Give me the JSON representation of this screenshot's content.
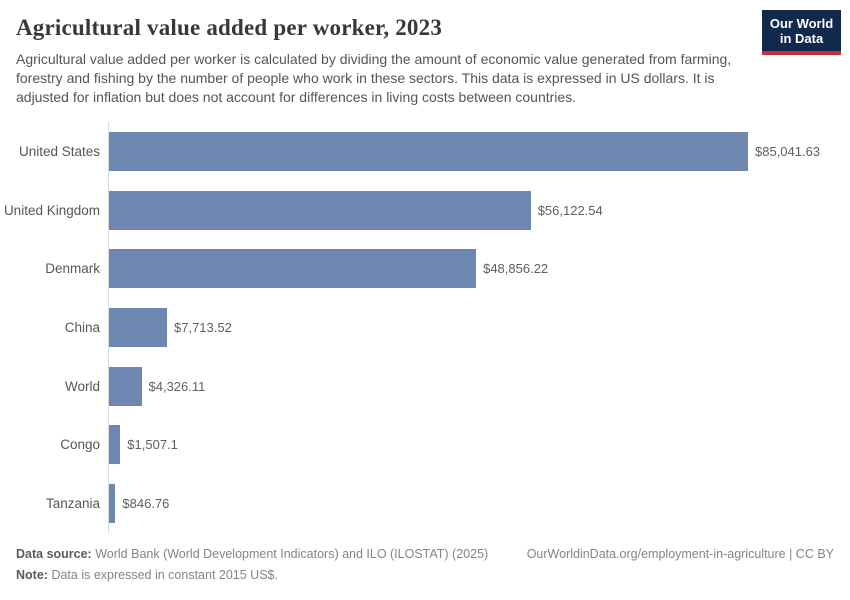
{
  "header": {
    "title": "Agricultural value added per worker, 2023",
    "subtitle": "Agricultural value added per worker is calculated by dividing the amount of economic value generated from farming, forestry and fishing by the number of people who work in these sectors. This data is expressed in US dollars. It is adjusted for inflation but does not account for differences in living costs between countries.",
    "logo": {
      "line1": "Our World",
      "line2": "in Data"
    }
  },
  "chart_data": {
    "type": "bar",
    "orientation": "horizontal",
    "title": "Agricultural value added per worker, 2023",
    "categories": [
      "United States",
      "United Kingdom",
      "Denmark",
      "China",
      "World",
      "Congo",
      "Tanzania"
    ],
    "values": [
      85041.63,
      56122.54,
      48856.22,
      7713.52,
      4326.11,
      1507.1,
      846.76
    ],
    "value_labels": [
      "$85,041.63",
      "$56,122.54",
      "$48,856.22",
      "$7,713.52",
      "$4,326.11",
      "$1,507.1",
      "$846.76"
    ],
    "xlabel": "",
    "ylabel": "",
    "xlim": [
      0,
      85041.63
    ],
    "grid": false,
    "legend": false,
    "bar_color": "#6d87b0",
    "axis_line_color": "#dcdcdc"
  },
  "footer": {
    "source_label": "Data source:",
    "source_text": "World Bank (World Development Indicators) and ILO (ILOSTAT) (2025)",
    "link_text": "OurWorldinData.org/employment-in-agriculture | CC BY",
    "note_label": "Note:",
    "note_text": "Data is expressed in constant 2015 US$."
  },
  "colors": {
    "bar": "#6d87b0",
    "logo_navy": "#12294e",
    "logo_red": "#c5303e",
    "title_text": "#383838",
    "body_text": "#555555"
  }
}
